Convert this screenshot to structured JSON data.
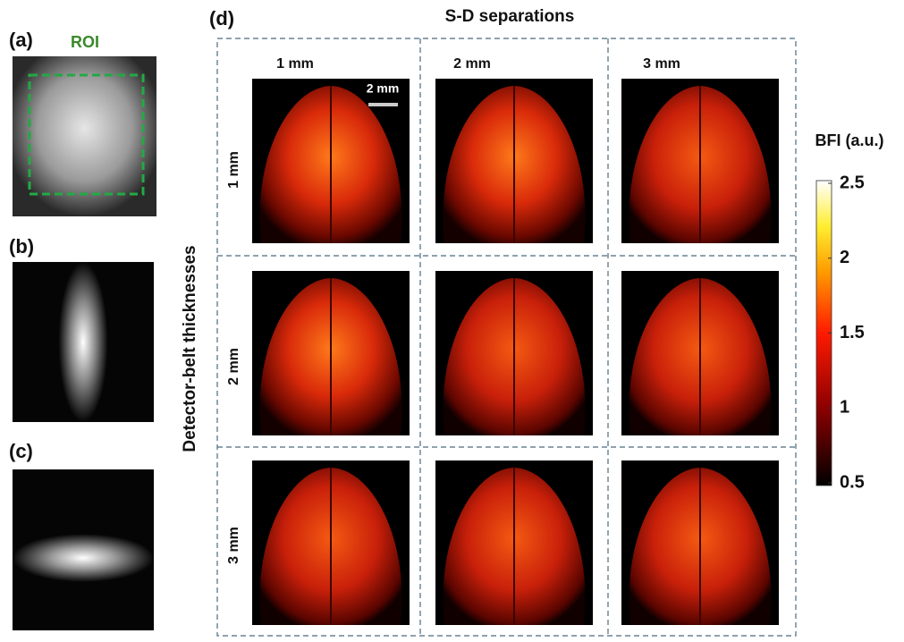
{
  "panels": {
    "a": {
      "label": "(a)",
      "roi_label": "ROI"
    },
    "b": {
      "label": "(b)"
    },
    "c": {
      "label": "(c)"
    },
    "d": {
      "label": "(d)",
      "title": "S-D separations",
      "scale_bar": "2 mm",
      "columns": [
        "1 mm",
        "2 mm",
        "3 mm"
      ],
      "row_title": "Detector-belt thicknesses",
      "rows": [
        "1 mm",
        "2 mm",
        "3 mm"
      ]
    }
  },
  "colorbar": {
    "title": "BFI (a.u.)",
    "range": [
      0.5,
      2.5
    ],
    "ticks": [
      0.5,
      1,
      1.5,
      2,
      2.5
    ]
  }
}
